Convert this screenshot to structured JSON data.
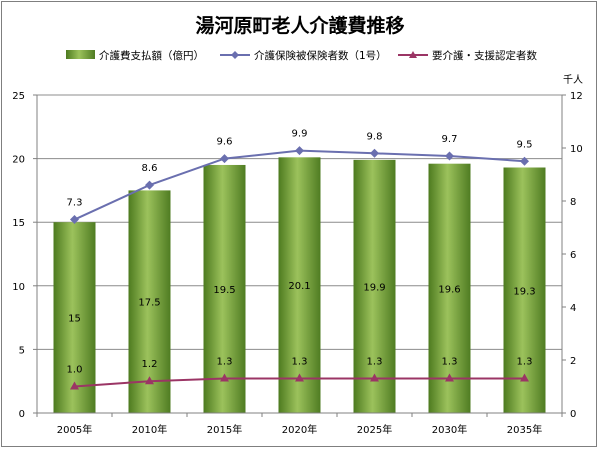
{
  "chart_data": {
    "type": "bar",
    "title": "湯河原町老人介護費推移",
    "categories": [
      "2005年",
      "2010年",
      "2015年",
      "2020年",
      "2025年",
      "2030年",
      "2035年"
    ],
    "series": [
      {
        "name": "介護費支払額（億円）",
        "type": "bar",
        "axis": "left",
        "values": [
          15,
          17.5,
          19.5,
          20.1,
          19.9,
          19.6,
          19.3
        ],
        "labels": [
          "15",
          "17.5",
          "19.5",
          "20.1",
          "19.9",
          "19.6",
          "19.3"
        ],
        "color": "#77a13c"
      },
      {
        "name": "介護保険被保険者数（1号）",
        "type": "line",
        "axis": "right",
        "values": [
          7.3,
          8.6,
          9.6,
          9.9,
          9.8,
          9.7,
          9.5
        ],
        "labels": [
          "7.3",
          "8.6",
          "9.6",
          "9.9",
          "9.8",
          "9.7",
          "9.5"
        ],
        "color": "#6a6faf",
        "marker": "diamond"
      },
      {
        "name": "要介護・支援認定者数",
        "type": "line",
        "axis": "right",
        "values": [
          1.0,
          1.2,
          1.3,
          1.3,
          1.3,
          1.3,
          1.3
        ],
        "labels": [
          "1.0",
          "1.2",
          "1.3",
          "1.3",
          "1.3",
          "1.3",
          "1.3"
        ],
        "color": "#9b3565",
        "marker": "triangle"
      }
    ],
    "y_left": {
      "ylim": [
        0,
        25
      ],
      "ticks": [
        "0",
        "5",
        "10",
        "15",
        "20",
        "25"
      ]
    },
    "y_right": {
      "ylim": [
        0,
        12
      ],
      "ticks": [
        "0",
        "2",
        "4",
        "6",
        "8",
        "10",
        "12"
      ],
      "unit": "千人"
    },
    "grid": true,
    "legend_position": "top"
  }
}
